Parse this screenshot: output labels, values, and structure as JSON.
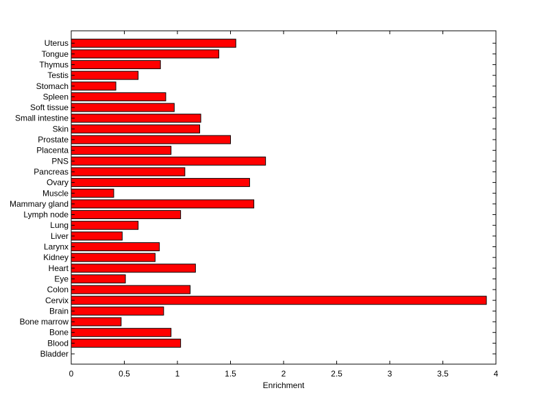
{
  "chart_data": {
    "type": "bar",
    "orientation": "horizontal",
    "title": "",
    "xlabel": "Enrichment",
    "ylabel": "",
    "xlim": [
      0,
      4
    ],
    "xticks": [
      0,
      0.5,
      1,
      1.5,
      2,
      2.5,
      3,
      3.5,
      4
    ],
    "xtick_labels": [
      "0",
      "0.5",
      "1",
      "1.5",
      "2",
      "2.5",
      "3",
      "3.5",
      "4"
    ],
    "grid": false,
    "legend": "none",
    "bar_color": "#ff0000",
    "edge_color": "#000000",
    "categories": [
      "Bladder",
      "Blood",
      "Bone",
      "Bone marrow",
      "Brain",
      "Cervix",
      "Colon",
      "Eye",
      "Heart",
      "Kidney",
      "Larynx",
      "Liver",
      "Lung",
      "Lymph node",
      "Mammary gland",
      "Muscle",
      "Ovary",
      "Pancreas",
      "PNS",
      "Placenta",
      "Prostate",
      "Skin",
      "Small intestine",
      "Soft tissue",
      "Spleen",
      "Stomach",
      "Testis",
      "Thymus",
      "Tongue",
      "Uterus"
    ],
    "values": [
      0,
      1.03,
      0.94,
      0.47,
      0.87,
      3.91,
      1.12,
      0.51,
      1.17,
      0.79,
      0.83,
      0.48,
      0.63,
      1.03,
      1.72,
      0.4,
      1.68,
      1.07,
      1.83,
      0.94,
      1.5,
      1.21,
      1.22,
      0.97,
      0.89,
      0.42,
      0.63,
      0.84,
      1.39,
      1.55
    ]
  }
}
